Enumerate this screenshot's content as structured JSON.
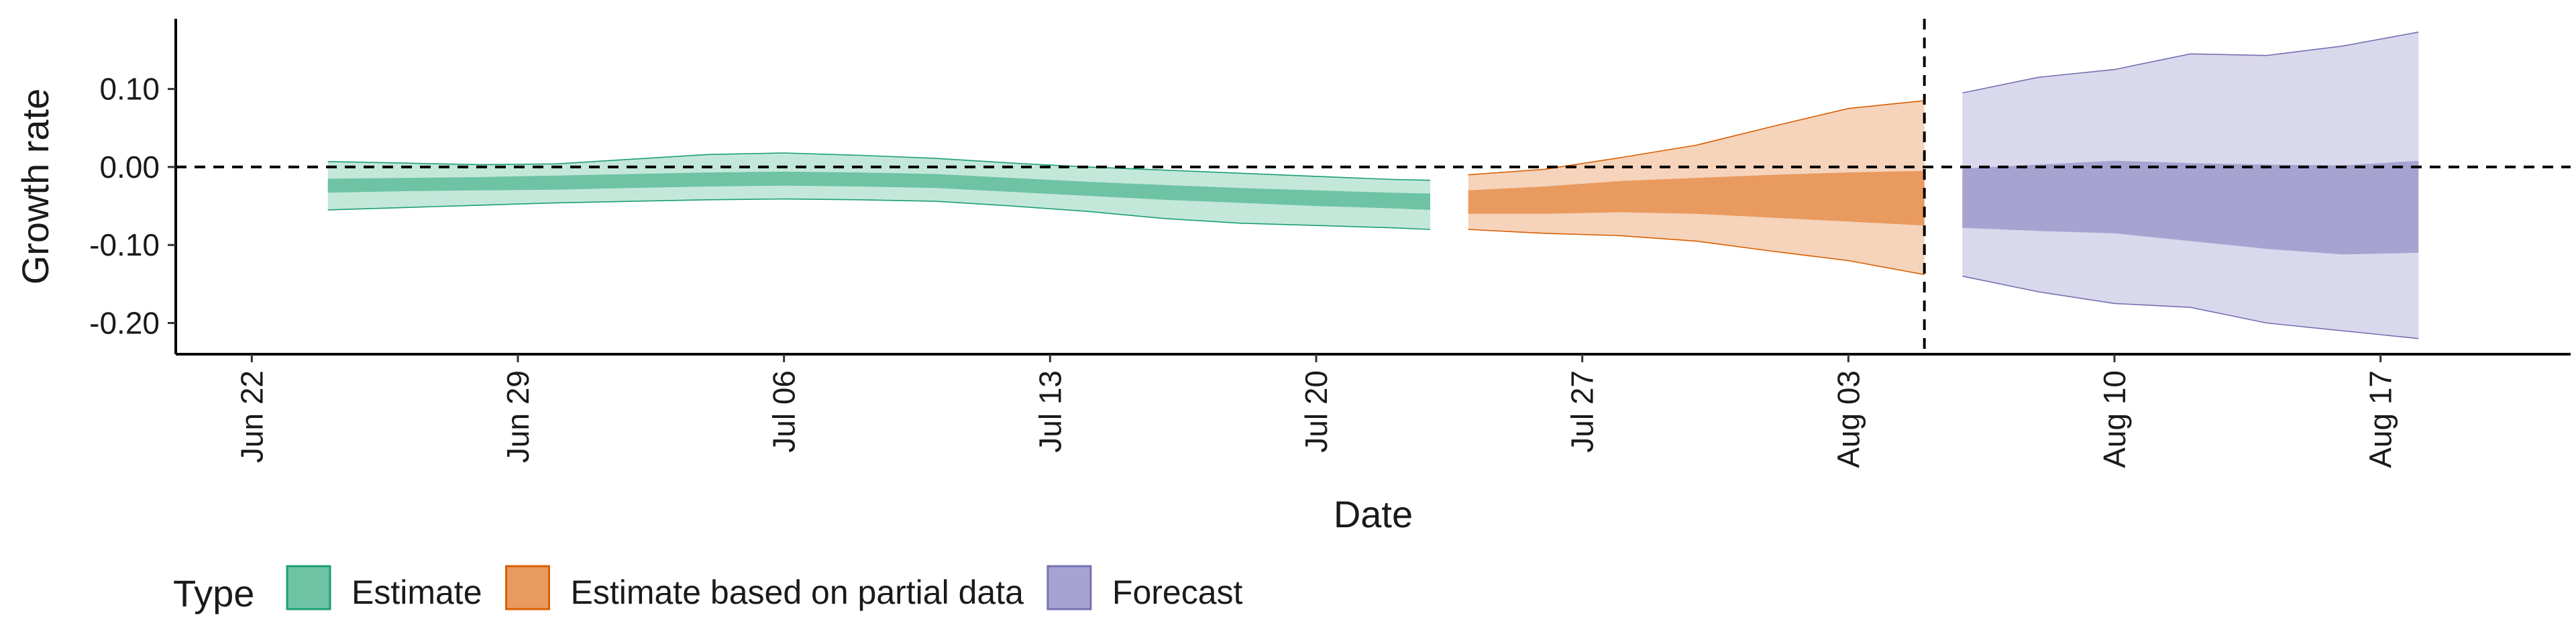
{
  "chart_data": {
    "type": "area",
    "xlabel": "Date",
    "ylabel": "Growth rate",
    "x_tick_labels": [
      "Jun 22",
      "Jun 29",
      "Jul 06",
      "Jul 13",
      "Jul 20",
      "Jul 27",
      "Aug 03",
      "Aug 10",
      "Aug 17"
    ],
    "x_tick_dates": [
      "2020-06-22",
      "2020-06-29",
      "2020-07-06",
      "2020-07-13",
      "2020-07-20",
      "2020-07-27",
      "2020-08-03",
      "2020-08-10",
      "2020-08-17"
    ],
    "xlim": [
      "2020-06-20",
      "2020-08-22"
    ],
    "y_ticks": [
      0.1,
      0.0,
      -0.1,
      -0.2
    ],
    "y_tick_labels": [
      "0.10",
      "0.00",
      "-0.10",
      "-0.20"
    ],
    "ylim": [
      -0.24,
      0.19
    ],
    "reference_lines": [
      {
        "axis": "y",
        "value": 0.0,
        "style": "dashed"
      },
      {
        "axis": "x",
        "value": "2020-08-05",
        "style": "dashed"
      }
    ],
    "grid": false,
    "legend": {
      "title": "Type",
      "position": "bottom-left"
    },
    "series": [
      {
        "name": "Estimate",
        "color_outer": "#c3e8da",
        "color_inner": "#6ec3a5",
        "border": "#1b9e77",
        "points": [
          {
            "date": "2020-06-24",
            "lower_90": -0.055,
            "lower_50": -0.033,
            "upper_50": -0.015,
            "upper_90": 0.007
          },
          {
            "date": "2020-06-26",
            "lower_90": -0.052,
            "lower_50": -0.031,
            "upper_50": -0.014,
            "upper_90": 0.005
          },
          {
            "date": "2020-06-28",
            "lower_90": -0.049,
            "lower_50": -0.03,
            "upper_50": -0.013,
            "upper_90": 0.003
          },
          {
            "date": "2020-06-30",
            "lower_90": -0.046,
            "lower_50": -0.029,
            "upper_50": -0.011,
            "upper_90": 0.004
          },
          {
            "date": "2020-07-02",
            "lower_90": -0.044,
            "lower_50": -0.027,
            "upper_50": -0.009,
            "upper_90": 0.01
          },
          {
            "date": "2020-07-04",
            "lower_90": -0.042,
            "lower_50": -0.025,
            "upper_50": -0.007,
            "upper_90": 0.016
          },
          {
            "date": "2020-07-06",
            "lower_90": -0.041,
            "lower_50": -0.024,
            "upper_50": -0.006,
            "upper_90": 0.018
          },
          {
            "date": "2020-07-08",
            "lower_90": -0.042,
            "lower_50": -0.025,
            "upper_50": -0.007,
            "upper_90": 0.015
          },
          {
            "date": "2020-07-10",
            "lower_90": -0.044,
            "lower_50": -0.027,
            "upper_50": -0.009,
            "upper_90": 0.011
          },
          {
            "date": "2020-07-12",
            "lower_90": -0.05,
            "lower_50": -0.032,
            "upper_50": -0.014,
            "upper_90": 0.005
          },
          {
            "date": "2020-07-14",
            "lower_90": -0.057,
            "lower_50": -0.037,
            "upper_50": -0.019,
            "upper_90": 0.0
          },
          {
            "date": "2020-07-16",
            "lower_90": -0.066,
            "lower_50": -0.042,
            "upper_50": -0.023,
            "upper_90": -0.004
          },
          {
            "date": "2020-07-18",
            "lower_90": -0.072,
            "lower_50": -0.046,
            "upper_50": -0.027,
            "upper_90": -0.008
          },
          {
            "date": "2020-07-20",
            "lower_90": -0.075,
            "lower_50": -0.05,
            "upper_50": -0.03,
            "upper_90": -0.012
          },
          {
            "date": "2020-07-22",
            "lower_90": -0.078,
            "lower_50": -0.053,
            "upper_50": -0.033,
            "upper_90": -0.016
          },
          {
            "date": "2020-07-23",
            "lower_90": -0.08,
            "lower_50": -0.055,
            "upper_50": -0.034,
            "upper_90": -0.017
          }
        ]
      },
      {
        "name": "Estimate based on partial data",
        "color_outer": "#f6d3bb",
        "color_inner": "#e99a5e",
        "border": "#d95f02",
        "points": [
          {
            "date": "2020-07-24",
            "lower_90": -0.08,
            "lower_50": -0.06,
            "upper_50": -0.03,
            "upper_90": -0.01
          },
          {
            "date": "2020-07-26",
            "lower_90": -0.085,
            "lower_50": -0.06,
            "upper_50": -0.025,
            "upper_90": -0.003
          },
          {
            "date": "2020-07-28",
            "lower_90": -0.088,
            "lower_50": -0.058,
            "upper_50": -0.018,
            "upper_90": 0.012
          },
          {
            "date": "2020-07-30",
            "lower_90": -0.095,
            "lower_50": -0.06,
            "upper_50": -0.014,
            "upper_90": 0.028
          },
          {
            "date": "2020-08-01",
            "lower_90": -0.108,
            "lower_50": -0.065,
            "upper_50": -0.01,
            "upper_90": 0.052
          },
          {
            "date": "2020-08-03",
            "lower_90": -0.12,
            "lower_50": -0.07,
            "upper_50": -0.007,
            "upper_90": 0.075
          },
          {
            "date": "2020-08-05",
            "lower_90": -0.138,
            "lower_50": -0.075,
            "upper_50": -0.005,
            "upper_90": 0.085
          }
        ]
      },
      {
        "name": "Forecast",
        "color_outer": "#dad8ec",
        "color_inner": "#a7a3d1",
        "border": "#7570b3",
        "points": [
          {
            "date": "2020-08-06",
            "lower_90": -0.14,
            "lower_50": -0.078,
            "upper_50": -0.002,
            "upper_90": 0.095
          },
          {
            "date": "2020-08-08",
            "lower_90": -0.16,
            "lower_50": -0.082,
            "upper_50": 0.003,
            "upper_90": 0.115
          },
          {
            "date": "2020-08-10",
            "lower_90": -0.175,
            "lower_50": -0.085,
            "upper_50": 0.008,
            "upper_90": 0.125
          },
          {
            "date": "2020-08-12",
            "lower_90": -0.18,
            "lower_50": -0.095,
            "upper_50": 0.005,
            "upper_90": 0.145
          },
          {
            "date": "2020-08-14",
            "lower_90": -0.2,
            "lower_50": -0.105,
            "upper_50": 0.003,
            "upper_90": 0.143
          },
          {
            "date": "2020-08-16",
            "lower_90": -0.21,
            "lower_50": -0.112,
            "upper_50": 0.002,
            "upper_90": 0.155
          },
          {
            "date": "2020-08-18",
            "lower_90": -0.22,
            "lower_50": -0.11,
            "upper_50": 0.008,
            "upper_90": 0.173
          }
        ]
      }
    ]
  }
}
